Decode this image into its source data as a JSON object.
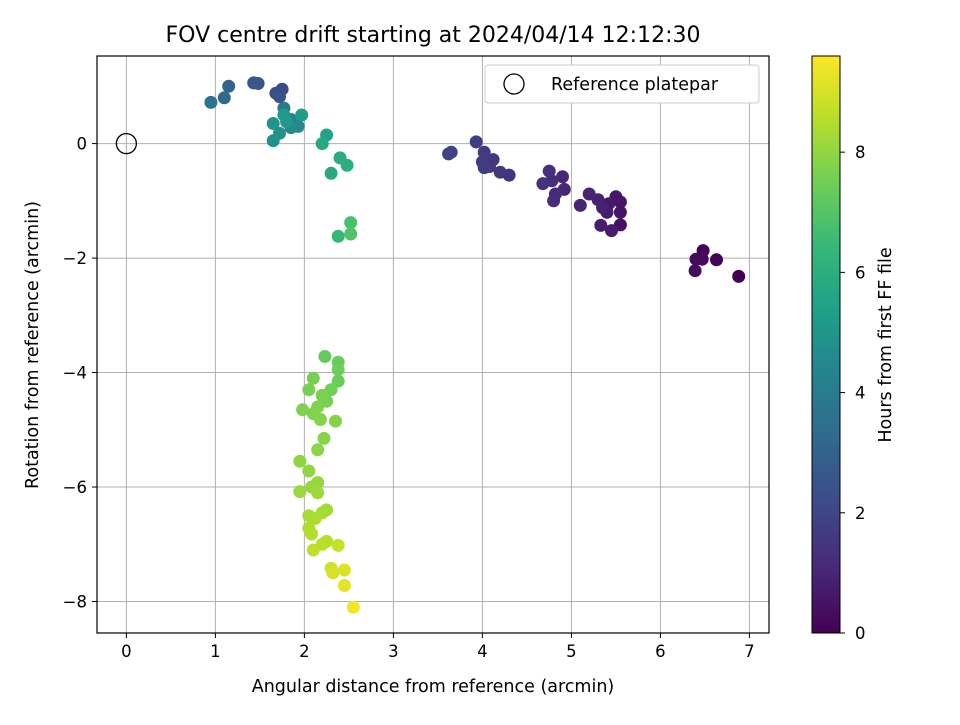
{
  "chart_data": {
    "type": "scatter",
    "title": "FOV centre drift starting at 2024/04/14 12:12:30",
    "xlabel": "Angular distance from reference (arcmin)",
    "ylabel": "Rotation from reference (arcmin)",
    "xlim": [
      -0.33,
      7.22
    ],
    "ylim": [
      -8.55,
      1.53
    ],
    "xticks": [
      0,
      1,
      2,
      3,
      4,
      5,
      6,
      7
    ],
    "yticks": [
      -8,
      -6,
      -4,
      -2,
      0
    ],
    "grid": true,
    "legend": {
      "position": "top-right",
      "entries": [
        "Reference platepar"
      ]
    },
    "reference_point": {
      "x": 0,
      "y": 0
    },
    "colorbar": {
      "label": "Hours from first FF file",
      "range": [
        0,
        9.6
      ],
      "ticks": [
        0,
        2,
        4,
        6,
        8
      ],
      "colormap": "viridis"
    },
    "colormap_stops": [
      "#440154",
      "#482878",
      "#3e4989",
      "#31688e",
      "#26828e",
      "#1f9e89",
      "#35b779",
      "#6ece58",
      "#b5de2b",
      "#fde725"
    ],
    "series": [
      {
        "points": [
          [
            6.88,
            -2.32,
            0.0
          ],
          [
            6.63,
            -2.03,
            0.1
          ],
          [
            6.48,
            -1.87,
            0.15
          ],
          [
            6.47,
            -2.02,
            0.2
          ],
          [
            6.4,
            -2.02,
            0.25
          ],
          [
            6.39,
            -2.22,
            0.3
          ],
          [
            5.55,
            -1.42,
            0.45
          ],
          [
            5.55,
            -1.2,
            0.5
          ],
          [
            5.55,
            -1.02,
            0.55
          ],
          [
            5.5,
            -0.93,
            0.6
          ],
          [
            5.42,
            -1.05,
            0.65
          ],
          [
            5.4,
            -1.2,
            0.7
          ],
          [
            5.45,
            -1.52,
            0.75
          ],
          [
            5.33,
            -1.43,
            0.8
          ],
          [
            5.35,
            -1.12,
            0.85
          ],
          [
            5.3,
            -0.98,
            0.9
          ],
          [
            5.2,
            -0.88,
            0.95
          ],
          [
            5.1,
            -1.08,
            1.0
          ],
          [
            4.92,
            -0.8,
            1.05
          ],
          [
            4.9,
            -0.58,
            1.1
          ],
          [
            4.82,
            -0.88,
            1.15
          ],
          [
            4.8,
            -1.0,
            1.2
          ],
          [
            4.78,
            -0.65,
            1.25
          ],
          [
            4.75,
            -0.48,
            1.3
          ],
          [
            4.68,
            -0.7,
            1.35
          ],
          [
            4.3,
            -0.55,
            1.45
          ],
          [
            4.2,
            -0.5,
            1.5
          ],
          [
            4.12,
            -0.28,
            1.55
          ],
          [
            4.08,
            -0.4,
            1.6
          ],
          [
            4.02,
            -0.15,
            1.65
          ],
          [
            4.0,
            -0.32,
            1.7
          ],
          [
            4.02,
            -0.42,
            1.75
          ],
          [
            3.93,
            0.03,
            1.8
          ],
          [
            3.65,
            -0.15,
            1.9
          ],
          [
            3.62,
            -0.18,
            1.95
          ],
          [
            1.75,
            0.95,
            2.2
          ],
          [
            1.68,
            0.88,
            2.3
          ],
          [
            1.72,
            0.82,
            2.4
          ],
          [
            1.48,
            1.05,
            2.5
          ],
          [
            1.43,
            1.06,
            2.6
          ],
          [
            1.15,
            1.0,
            3.1
          ],
          [
            1.1,
            0.8,
            3.3
          ],
          [
            0.95,
            0.72,
            3.6
          ],
          [
            1.77,
            0.62,
            3.9
          ],
          [
            1.85,
            0.42,
            4.2
          ],
          [
            1.93,
            0.3,
            4.5
          ],
          [
            1.85,
            0.28,
            4.6
          ],
          [
            1.72,
            0.18,
            4.8
          ],
          [
            1.65,
            0.05,
            4.9
          ],
          [
            1.65,
            0.35,
            5.0
          ],
          [
            1.8,
            0.38,
            5.1
          ],
          [
            1.77,
            0.5,
            5.2
          ],
          [
            1.97,
            0.5,
            5.3
          ],
          [
            2.25,
            0.15,
            5.6
          ],
          [
            2.2,
            0.0,
            5.7
          ],
          [
            2.3,
            -0.52,
            5.8
          ],
          [
            2.4,
            -0.25,
            5.9
          ],
          [
            2.48,
            -0.38,
            6.0
          ],
          [
            2.38,
            -1.62,
            6.4
          ],
          [
            2.52,
            -1.38,
            6.8
          ],
          [
            2.52,
            -1.58,
            6.9
          ],
          [
            2.23,
            -3.72,
            7.3
          ],
          [
            2.38,
            -3.82,
            7.35
          ],
          [
            2.38,
            -4.15,
            7.4
          ],
          [
            2.38,
            -3.95,
            7.45
          ],
          [
            2.3,
            -4.3,
            7.5
          ],
          [
            2.25,
            -4.5,
            7.55
          ],
          [
            2.1,
            -4.1,
            7.6
          ],
          [
            2.05,
            -4.3,
            7.62
          ],
          [
            2.2,
            -4.4,
            7.65
          ],
          [
            2.15,
            -4.6,
            7.7
          ],
          [
            1.98,
            -4.65,
            7.72
          ],
          [
            2.1,
            -4.72,
            7.75
          ],
          [
            2.18,
            -4.82,
            7.78
          ],
          [
            2.35,
            -4.85,
            7.8
          ],
          [
            2.22,
            -5.15,
            7.85
          ],
          [
            2.15,
            -5.35,
            7.9
          ],
          [
            1.95,
            -5.55,
            7.95
          ],
          [
            2.05,
            -5.72,
            8.0
          ],
          [
            2.15,
            -5.92,
            8.05
          ],
          [
            2.08,
            -6.0,
            8.1
          ],
          [
            1.95,
            -6.08,
            8.15
          ],
          [
            2.15,
            -6.1,
            8.2
          ],
          [
            2.25,
            -6.4,
            8.25
          ],
          [
            2.2,
            -6.45,
            8.3
          ],
          [
            2.05,
            -6.5,
            8.35
          ],
          [
            2.12,
            -6.55,
            8.4
          ],
          [
            2.05,
            -6.72,
            8.45
          ],
          [
            2.08,
            -6.82,
            8.5
          ],
          [
            2.25,
            -6.95,
            8.55
          ],
          [
            2.2,
            -7.0,
            8.6
          ],
          [
            2.1,
            -7.1,
            8.7
          ],
          [
            2.38,
            -7.02,
            8.8
          ],
          [
            2.3,
            -7.42,
            8.9
          ],
          [
            2.32,
            -7.5,
            9.0
          ],
          [
            2.45,
            -7.45,
            9.1
          ],
          [
            2.45,
            -7.72,
            9.2
          ],
          [
            2.55,
            -8.1,
            9.4
          ]
        ]
      }
    ]
  }
}
